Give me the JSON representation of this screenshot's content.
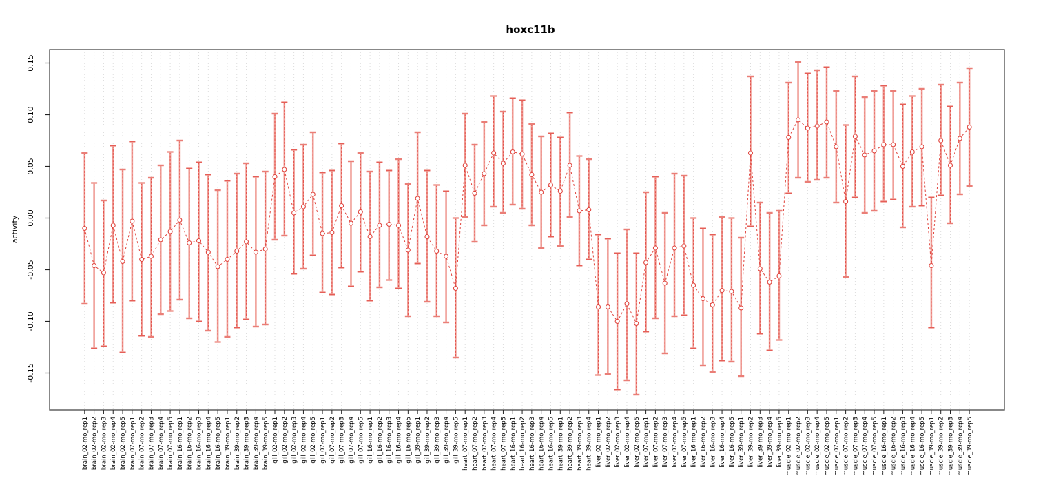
{
  "title": "hoxc11b",
  "ylabel": "activity",
  "colors": {
    "point": "#e0433c",
    "bar_thick": "#f09e97",
    "bar_dash": "#e0433c",
    "grid": "#dcdcdc",
    "zero_line": "#c9c9c9",
    "box": "#555555",
    "tick": "#222222",
    "text": "#000000"
  },
  "chart_data": {
    "type": "line",
    "title": "hoxc11b",
    "xlabel": "",
    "ylabel": "activity",
    "ylim": [
      -0.186,
      0.163
    ],
    "yticks": [
      -0.15,
      -0.1,
      -0.05,
      0.0,
      0.05,
      0.1,
      0.15
    ],
    "grid": "vertical-dotted-per-category",
    "zero_line_dotted": true,
    "legend": "none",
    "marker": "open-circle",
    "line_style": "dashed",
    "error_bars": true,
    "categories": [
      "brain_02-mo_rep1",
      "brain_02-mo_rep2",
      "brain_02-mo_rep3",
      "brain_02-mo_rep4",
      "brain_02-mo_rep5",
      "brain_07-mo_rep1",
      "brain_07-mo_rep2",
      "brain_07-mo_rep3",
      "brain_07-mo_rep4",
      "brain_07-mo_rep5",
      "brain_16-mo_rep1",
      "brain_16-mo_rep2",
      "brain_16-mo_rep3",
      "brain_16-mo_rep4",
      "brain_16-mo_rep5",
      "brain_39-mo_rep1",
      "brain_39-mo_rep2",
      "brain_39-mo_rep3",
      "brain_39-mo_rep4",
      "brain_39-mo_rep5",
      "gill_02-mo_rep1",
      "gill_02-mo_rep2",
      "gill_02-mo_rep3",
      "gill_02-mo_rep4",
      "gill_02-mo_rep5",
      "gill_07-mo_rep1",
      "gill_07-mo_rep2",
      "gill_07-mo_rep3",
      "gill_07-mo_rep4",
      "gill_07-mo_rep5",
      "gill_16-mo_rep1",
      "gill_16-mo_rep2",
      "gill_16-mo_rep3",
      "gill_16-mo_rep4",
      "gill_16-mo_rep5",
      "gill_39-mo_rep1",
      "gill_39-mo_rep2",
      "gill_39-mo_rep3",
      "gill_39-mo_rep4",
      "gill_39-mo_rep5",
      "heart_07-mo_rep1",
      "heart_07-mo_rep2",
      "heart_07-mo_rep3",
      "heart_07-mo_rep4",
      "heart_07-mo_rep5",
      "heart_16-mo_rep1",
      "heart_16-mo_rep2",
      "heart_16-mo_rep3",
      "heart_16-mo_rep4",
      "heart_16-mo_rep5",
      "heart_39-mo_rep1",
      "heart_39-mo_rep2",
      "heart_39-mo_rep3",
      "heart_39-mo_rep4",
      "liver_02-mo_rep1",
      "liver_02-mo_rep2",
      "liver_02-mo_rep3",
      "liver_02-mo_rep4",
      "liver_02-mo_rep5",
      "liver_07-mo_rep1",
      "liver_07-mo_rep2",
      "liver_07-mo_rep3",
      "liver_07-mo_rep4",
      "liver_07-mo_rep5",
      "liver_16-mo_rep1",
      "liver_16-mo_rep2",
      "liver_16-mo_rep3",
      "liver_16-mo_rep4",
      "liver_16-mo_rep5",
      "liver_39-mo_rep1",
      "liver_39-mo_rep2",
      "liver_39-mo_rep3",
      "liver_39-mo_rep4",
      "liver_39-mo_rep5",
      "muscle_02-mo_rep1",
      "muscle_02-mo_rep2",
      "muscle_02-mo_rep3",
      "muscle_02-mo_rep4",
      "muscle_02-mo_rep5",
      "muscle_07-mo_rep1",
      "muscle_07-mo_rep2",
      "muscle_07-mo_rep3",
      "muscle_07-mo_rep4",
      "muscle_07-mo_rep5",
      "muscle_16-mo_rep1",
      "muscle_16-mo_rep2",
      "muscle_16-mo_rep3",
      "muscle_16-mo_rep4",
      "muscle_16-mo_rep5",
      "muscle_39-mo_rep1",
      "muscle_39-mo_rep2",
      "muscle_39-mo_rep3",
      "muscle_39-mo_rep4",
      "muscle_39-mo_rep5"
    ],
    "values": [
      -0.01,
      -0.046,
      -0.053,
      -0.007,
      -0.042,
      -0.003,
      -0.04,
      -0.037,
      -0.021,
      -0.013,
      -0.002,
      -0.024,
      -0.022,
      -0.033,
      -0.047,
      -0.04,
      -0.032,
      -0.023,
      -0.033,
      -0.03,
      0.04,
      0.047,
      0.005,
      0.011,
      0.023,
      -0.015,
      -0.014,
      0.012,
      -0.005,
      0.006,
      -0.018,
      -0.007,
      -0.006,
      -0.007,
      -0.031,
      0.019,
      -0.018,
      -0.032,
      -0.037,
      -0.068,
      0.051,
      0.024,
      0.043,
      0.063,
      0.053,
      0.064,
      0.062,
      0.042,
      0.025,
      0.032,
      0.026,
      0.051,
      0.007,
      0.008,
      -0.086,
      -0.086,
      -0.1,
      -0.083,
      -0.102,
      -0.043,
      -0.029,
      -0.063,
      -0.029,
      -0.027,
      -0.065,
      -0.078,
      -0.084,
      -0.07,
      -0.071,
      -0.087,
      0.063,
      -0.049,
      -0.062,
      -0.056,
      0.078,
      0.095,
      0.087,
      0.089,
      0.093,
      0.069,
      0.016,
      0.079,
      0.061,
      0.065,
      0.071,
      0.071,
      0.05,
      0.064,
      0.069,
      -0.046,
      0.075,
      0.051,
      0.077,
      0.088
    ],
    "lower": [
      -0.083,
      -0.126,
      -0.124,
      -0.082,
      -0.13,
      -0.08,
      -0.114,
      -0.115,
      -0.093,
      -0.09,
      -0.079,
      -0.097,
      -0.1,
      -0.109,
      -0.12,
      -0.115,
      -0.106,
      -0.098,
      -0.105,
      -0.103,
      -0.021,
      -0.017,
      -0.054,
      -0.049,
      -0.036,
      -0.072,
      -0.074,
      -0.048,
      -0.066,
      -0.052,
      -0.08,
      -0.067,
      -0.06,
      -0.068,
      -0.095,
      -0.044,
      -0.081,
      -0.095,
      -0.101,
      -0.135,
      0.001,
      -0.023,
      -0.007,
      0.011,
      0.005,
      0.013,
      0.009,
      -0.007,
      -0.029,
      -0.018,
      -0.027,
      0.001,
      -0.046,
      -0.04,
      -0.152,
      -0.151,
      -0.166,
      -0.157,
      -0.171,
      -0.11,
      -0.097,
      -0.131,
      -0.095,
      -0.094,
      -0.126,
      -0.143,
      -0.149,
      -0.138,
      -0.139,
      -0.153,
      -0.008,
      -0.112,
      -0.128,
      -0.118,
      0.024,
      0.039,
      0.035,
      0.037,
      0.039,
      0.015,
      -0.057,
      0.02,
      0.005,
      0.007,
      0.016,
      0.018,
      -0.009,
      0.011,
      0.012,
      -0.106,
      0.022,
      -0.005,
      0.023,
      0.031
    ],
    "upper": [
      0.063,
      0.034,
      0.017,
      0.07,
      0.047,
      0.074,
      0.034,
      0.039,
      0.051,
      0.064,
      0.075,
      0.048,
      0.054,
      0.042,
      0.027,
      0.036,
      0.043,
      0.053,
      0.04,
      0.045,
      0.101,
      0.112,
      0.066,
      0.071,
      0.083,
      0.044,
      0.046,
      0.072,
      0.055,
      0.063,
      0.045,
      0.054,
      0.046,
      0.057,
      0.033,
      0.083,
      0.046,
      0.032,
      0.026,
      0.0,
      0.101,
      0.071,
      0.093,
      0.118,
      0.103,
      0.116,
      0.114,
      0.091,
      0.079,
      0.082,
      0.078,
      0.102,
      0.06,
      0.057,
      -0.016,
      -0.02,
      -0.034,
      -0.011,
      -0.034,
      0.025,
      0.04,
      0.005,
      0.043,
      0.041,
      0.0,
      -0.01,
      -0.016,
      0.001,
      0.0,
      -0.019,
      0.137,
      0.015,
      0.005,
      0.007,
      0.131,
      0.151,
      0.14,
      0.143,
      0.146,
      0.123,
      0.09,
      0.137,
      0.117,
      0.123,
      0.128,
      0.123,
      0.11,
      0.118,
      0.125,
      0.02,
      0.129,
      0.108,
      0.131,
      0.145
    ]
  }
}
